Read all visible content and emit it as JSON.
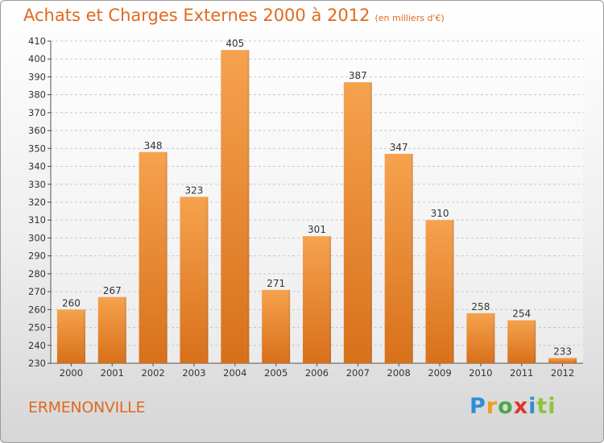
{
  "header": {
    "title": "Achats et Charges Externes 2000 à 2012",
    "subtitle": "(en milliers d'€)"
  },
  "footer": {
    "city": "ERMENONVILLE",
    "logo_parts": [
      "P",
      "r",
      "o",
      "x",
      "i",
      "ti"
    ]
  },
  "colors": {
    "title": "#e06a1e",
    "bar_top": "#f6a24e",
    "bar_bottom": "#d8701a"
  },
  "chart_data": {
    "type": "bar",
    "title": "Achats et Charges Externes 2000 à 2012",
    "subtitle": "(en milliers d'€)",
    "xlabel": "",
    "ylabel": "",
    "categories": [
      "2000",
      "2001",
      "2002",
      "2003",
      "2004",
      "2005",
      "2006",
      "2007",
      "2008",
      "2009",
      "2010",
      "2011",
      "2012"
    ],
    "values": [
      260,
      267,
      348,
      323,
      405,
      271,
      301,
      387,
      347,
      310,
      258,
      254,
      233
    ],
    "ylim": [
      230,
      410
    ],
    "yticks": [
      230,
      240,
      250,
      260,
      270,
      280,
      290,
      300,
      310,
      320,
      330,
      340,
      350,
      360,
      370,
      380,
      390,
      400,
      410
    ],
    "grid": true,
    "data_labels": true
  }
}
